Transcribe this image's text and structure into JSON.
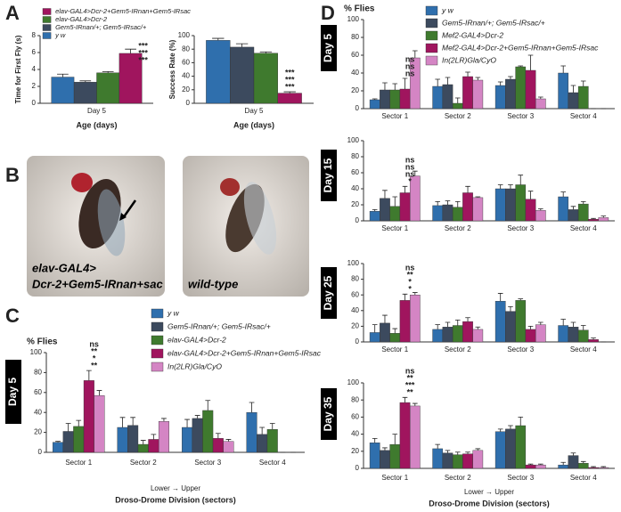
{
  "panel_labels": [
    "A",
    "B",
    "C",
    "D"
  ],
  "images": [
    {
      "caption": [
        "elav-GAL4>",
        "Dcr-2+Gem5-IRnan+sac"
      ]
    },
    {
      "caption": [
        "wild-type"
      ]
    }
  ],
  "chart_data": [
    {
      "type": "bar",
      "y_label": "Time for First Fly (s)",
      "x_label": "Age (days)",
      "categories": [
        "Day 5"
      ],
      "ylim": [
        0,
        8
      ],
      "yticks": [
        0,
        2,
        4,
        6,
        8
      ],
      "legend": "top-left",
      "legend_reversed": true,
      "series": [
        {
          "name": "y w",
          "color": "#2f6fad",
          "values": [
            3.1
          ],
          "errors": [
            0.35
          ]
        },
        {
          "name": "Gem5-IRnan/+; Gem5-IRsac/+",
          "color": "#3c4a5e",
          "values": [
            2.5
          ],
          "errors": [
            0.15
          ]
        },
        {
          "name": "elav-GAL4>Dcr-2",
          "color": "#3f7a2e",
          "values": [
            3.6
          ],
          "errors": [
            0.15
          ]
        },
        {
          "name": "elav-GAL4>Dcr-2+Gem5-IRnan+Gem5-IRsac",
          "color": "#a0155e",
          "values": [
            5.9
          ],
          "errors": [
            0.5
          ]
        }
      ],
      "annotations": [
        {
          "text": "***",
          "color": "#4a8fc0"
        },
        {
          "text": "***",
          "color": "#3c4a5e"
        },
        {
          "text": "***",
          "color": "#3f7a2e"
        }
      ]
    },
    {
      "type": "bar",
      "y_label": "Success Rate (%)",
      "x_label": "Age (days)",
      "categories": [
        "Day 5"
      ],
      "ylim": [
        0,
        100
      ],
      "yticks": [
        0,
        20,
        40,
        60,
        80,
        100
      ],
      "series": [
        {
          "color": "#2f6fad",
          "values": [
            93
          ],
          "errors": [
            3
          ]
        },
        {
          "color": "#3c4a5e",
          "values": [
            83
          ],
          "errors": [
            5
          ]
        },
        {
          "color": "#3f7a2e",
          "values": [
            74
          ],
          "errors": [
            2
          ]
        },
        {
          "color": "#a0155e",
          "values": [
            15
          ],
          "errors": [
            2
          ]
        }
      ],
      "annotations": [
        {
          "text": "***",
          "color": "#4a8fc0"
        },
        {
          "text": "***",
          "color": "#3c4a5e"
        },
        {
          "text": "***",
          "color": "#3f7a2e"
        }
      ]
    },
    {
      "type": "bar",
      "panel_title": "Day 5",
      "y_label": "% Flies",
      "x_note": "Lower → Upper",
      "x_label": "Droso-Drome Division (sectors)",
      "categories": [
        "Sector 1",
        "Sector 2",
        "Sector 3",
        "Sector 4"
      ],
      "ylim": [
        0,
        100
      ],
      "yticks": [
        0,
        20,
        40,
        60,
        80,
        100
      ],
      "legend": "top-right",
      "series": [
        {
          "name": "y w",
          "color": "#2f6fad",
          "values": [
            10,
            25,
            25,
            40
          ],
          "errors": [
            1,
            10,
            8,
            10
          ]
        },
        {
          "name": "Gem5-IRnan/+; Gem5-IRsac/+",
          "color": "#3c4a5e",
          "values": [
            21,
            27,
            34,
            18
          ],
          "errors": [
            8,
            8,
            3,
            7
          ]
        },
        {
          "name": "elav-GAL4>Dcr-2",
          "color": "#3f7a2e",
          "values": [
            26,
            8,
            42,
            23
          ],
          "errors": [
            6,
            4,
            10,
            6
          ]
        },
        {
          "name": "elav-GAL4>Dcr-2+Gem5-IRnan+Gem5-IRsac",
          "color": "#a0155e",
          "values": [
            72,
            13,
            14,
            0
          ],
          "errors": [
            10,
            5,
            5,
            0
          ]
        },
        {
          "name": "In(2LR)Gla/CyO",
          "color": "#d485c4",
          "values": [
            57,
            31,
            11,
            0
          ],
          "errors": [
            5,
            3,
            2,
            0
          ]
        }
      ],
      "annotations": [
        {
          "text": "ns",
          "color": "#d485c4"
        },
        {
          "text": "**",
          "color": "#3f7a2e"
        },
        {
          "text": "*",
          "color": "#3c4a5e"
        },
        {
          "text": "**",
          "color": "#4a8fc0"
        }
      ]
    },
    {
      "type": "bar",
      "panel_title": "Day 5",
      "y_label": "% Flies",
      "categories": [
        "Sector 1",
        "Sector 2",
        "Sector 3",
        "Sector 4"
      ],
      "ylim": [
        0,
        100
      ],
      "yticks": [
        0,
        20,
        40,
        60,
        80,
        100
      ],
      "legend": "top-right",
      "series": [
        {
          "name": "y w",
          "color": "#2f6fad",
          "values": [
            10,
            25,
            26,
            40
          ],
          "errors": [
            1,
            8,
            4,
            8
          ]
        },
        {
          "name": "Gem5-IRnan/+; Gem5-IRsac/+",
          "color": "#3c4a5e",
          "values": [
            21,
            27,
            33,
            18
          ],
          "errors": [
            8,
            8,
            3,
            8
          ]
        },
        {
          "name": "Mef2-GAL4>Dcr-2",
          "color": "#3f7a2e",
          "values": [
            21,
            6,
            47,
            25
          ],
          "errors": [
            7,
            6,
            1,
            6
          ]
        },
        {
          "name": "Mef2-GAL4>Dcr-2+Gem5-IRnan+Gem5-IRsac",
          "color": "#a0155e",
          "values": [
            22,
            36,
            43,
            0
          ],
          "errors": [
            12,
            5,
            17,
            0
          ]
        },
        {
          "name": "In(2LR)Gla/CyO",
          "color": "#d485c4",
          "values": [
            57,
            32,
            11,
            0
          ],
          "errors": [
            8,
            3,
            2,
            0
          ]
        }
      ],
      "annotations": [
        {
          "text": "ns",
          "color": "#4a8fc0"
        },
        {
          "text": "ns",
          "color": "#3c4a5e"
        },
        {
          "text": "ns",
          "color": "#3f7a2e"
        }
      ]
    },
    {
      "type": "bar",
      "panel_title": "Day 15",
      "categories": [
        "Sector 1",
        "Sector 2",
        "Sector 3",
        "Sector 4"
      ],
      "ylim": [
        0,
        100
      ],
      "yticks": [
        0,
        20,
        40,
        60,
        80,
        100
      ],
      "series": [
        {
          "color": "#2f6fad",
          "values": [
            12,
            19,
            40,
            30
          ],
          "errors": [
            2,
            5,
            5,
            6
          ]
        },
        {
          "color": "#3c4a5e",
          "values": [
            28,
            20,
            40,
            14
          ],
          "errors": [
            10,
            5,
            5,
            4
          ]
        },
        {
          "color": "#3f7a2e",
          "values": [
            18,
            17,
            45,
            21
          ],
          "errors": [
            12,
            7,
            12,
            3
          ]
        },
        {
          "color": "#a0155e",
          "values": [
            35,
            35,
            27,
            2
          ],
          "errors": [
            8,
            8,
            10,
            1
          ]
        },
        {
          "color": "#d485c4",
          "values": [
            56,
            29,
            13,
            4
          ],
          "errors": [
            6,
            1,
            2,
            2
          ]
        }
      ],
      "annotations": [
        {
          "text": "ns",
          "color": "#d485c4"
        },
        {
          "text": "ns",
          "color": "#3f7a2e"
        },
        {
          "text": "ns",
          "color": "#3c4a5e"
        },
        {
          "text": "*",
          "color": "#4a8fc0"
        }
      ]
    },
    {
      "type": "bar",
      "panel_title": "Day 25",
      "categories": [
        "Sector 1",
        "Sector 2",
        "Sector 3",
        "Sector 4"
      ],
      "ylim": [
        0,
        100
      ],
      "yticks": [
        0,
        20,
        40,
        60,
        80,
        100
      ],
      "series": [
        {
          "color": "#2f6fad",
          "values": [
            12,
            16,
            52,
            21
          ],
          "errors": [
            10,
            6,
            10,
            8
          ]
        },
        {
          "color": "#3c4a5e",
          "values": [
            24,
            19,
            39,
            19
          ],
          "errors": [
            10,
            6,
            6,
            6
          ]
        },
        {
          "color": "#3f7a2e",
          "values": [
            11,
            21,
            53,
            15
          ],
          "errors": [
            6,
            7,
            2,
            6
          ]
        },
        {
          "color": "#a0155e",
          "values": [
            53,
            26,
            16,
            3
          ],
          "errors": [
            8,
            5,
            4,
            2
          ]
        },
        {
          "color": "#d485c4",
          "values": [
            60,
            16,
            22,
            0
          ],
          "errors": [
            3,
            3,
            3,
            0
          ]
        }
      ],
      "annotations": [
        {
          "text": "ns",
          "color": "#d485c4"
        },
        {
          "text": "**",
          "color": "#3f7a2e"
        },
        {
          "text": "*",
          "color": "#3c4a5e"
        },
        {
          "text": "*",
          "color": "#4a8fc0"
        }
      ]
    },
    {
      "type": "bar",
      "panel_title": "Day 35",
      "x_note": "Lower → Upper",
      "x_label": "Droso-Drome Division (sectors)",
      "categories": [
        "Sector 1",
        "Sector 2",
        "Sector 3",
        "Sector 4"
      ],
      "ylim": [
        0,
        100
      ],
      "yticks": [
        0,
        20,
        40,
        60,
        80,
        100
      ],
      "series": [
        {
          "color": "#2f6fad",
          "values": [
            30,
            23,
            43,
            4
          ],
          "errors": [
            5,
            5,
            3,
            3
          ]
        },
        {
          "color": "#3c4a5e",
          "values": [
            21,
            18,
            46,
            15
          ],
          "errors": [
            3,
            3,
            4,
            3
          ]
        },
        {
          "color": "#3f7a2e",
          "values": [
            28,
            16,
            50,
            6
          ],
          "errors": [
            12,
            3,
            10,
            2
          ]
        },
        {
          "color": "#a0155e",
          "values": [
            77,
            17,
            4,
            1
          ],
          "errors": [
            6,
            2,
            1,
            1
          ]
        },
        {
          "color": "#d485c4",
          "values": [
            73,
            21,
            4,
            1
          ],
          "errors": [
            3,
            2,
            1,
            1
          ]
        }
      ],
      "annotations": [
        {
          "text": "ns",
          "color": "#d485c4"
        },
        {
          "text": "**",
          "color": "#3f7a2e"
        },
        {
          "text": "***",
          "color": "#3c4a5e"
        },
        {
          "text": "**",
          "color": "#4a8fc0"
        }
      ]
    }
  ]
}
